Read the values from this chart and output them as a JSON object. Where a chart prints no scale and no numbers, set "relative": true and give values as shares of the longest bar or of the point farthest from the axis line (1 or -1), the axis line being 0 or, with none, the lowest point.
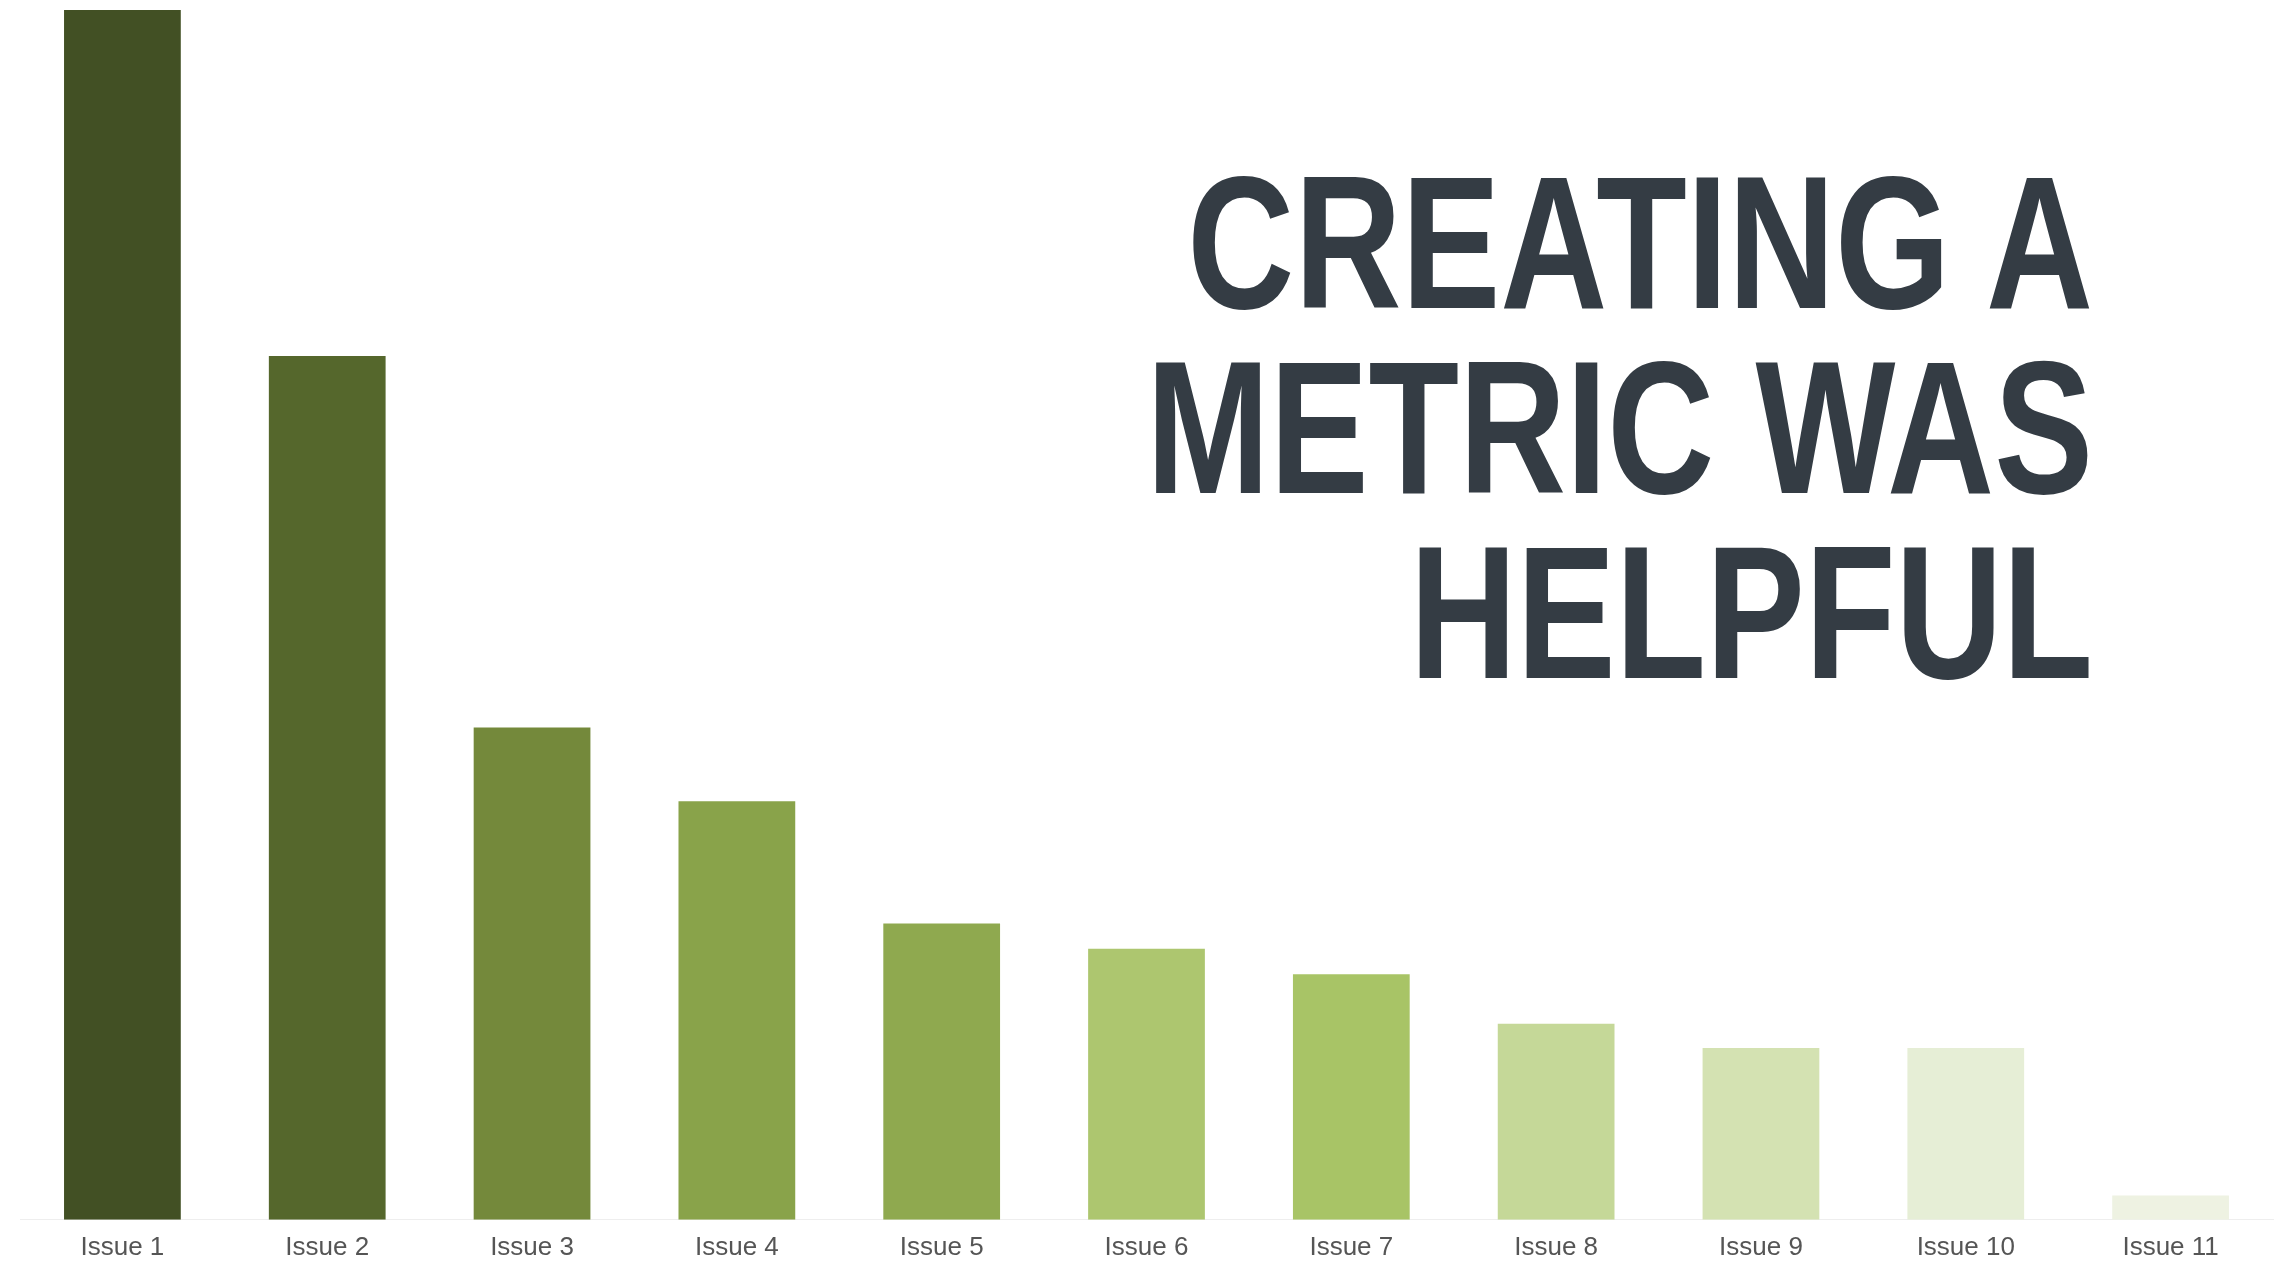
{
  "chart_data": {
    "type": "bar",
    "title": "CREATING A METRIC WAS HELPFUL",
    "relative": true,
    "categories": [
      "Issue 1",
      "Issue 2",
      "Issue 3",
      "Issue 4",
      "Issue 5",
      "Issue 6",
      "Issue 7",
      "Issue 8",
      "Issue 9",
      "Issue 10",
      "Issue 11"
    ],
    "values": [
      1,
      0.714,
      0.407,
      0.346,
      0.245,
      0.224,
      0.203,
      0.162,
      0.142,
      0.142,
      0.02
    ],
    "colors": [
      "#425024",
      "#55672c",
      "#74893b",
      "#89a34a",
      "#8fa94f",
      "#adc66f",
      "#a8c466",
      "#c5d898",
      "#d4e2b2",
      "#e6eed6",
      "#eef2e2"
    ],
    "legend": false,
    "grid": false
  }
}
